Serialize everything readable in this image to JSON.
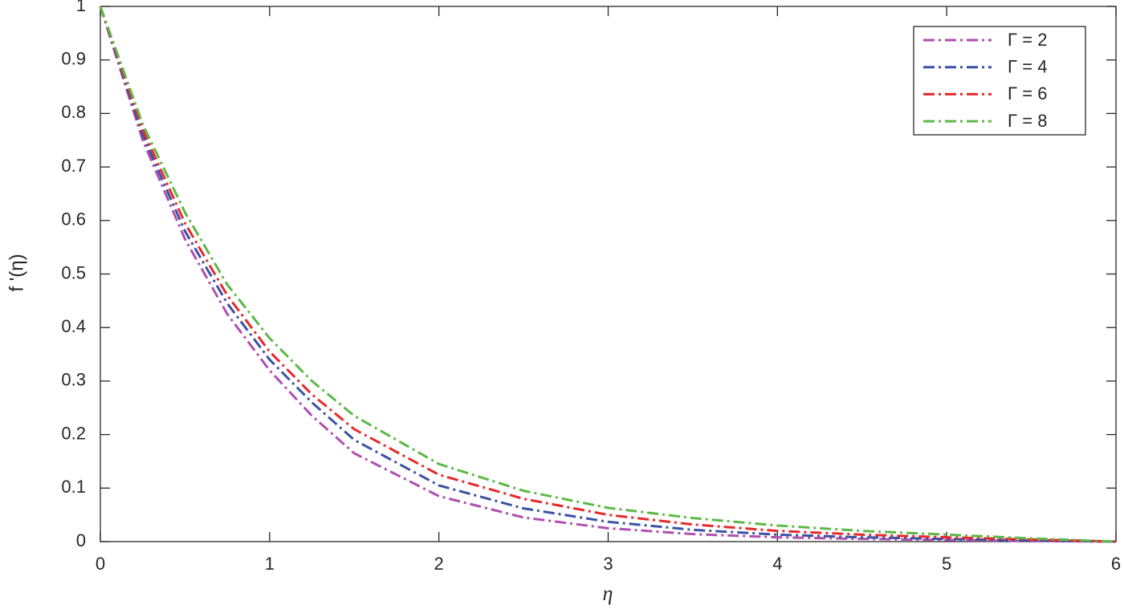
{
  "chart_data": {
    "type": "line",
    "xlabel": "η",
    "ylabel": "f '(η)",
    "x": [
      0,
      0.25,
      0.5,
      0.75,
      1,
      1.25,
      1.5,
      2,
      2.5,
      3,
      3.5,
      4,
      4.5,
      5,
      5.5,
      6
    ],
    "series": [
      {
        "name": "Γ = 2",
        "color": "#b04fae",
        "values": [
          1,
          0.75,
          0.565,
          0.425,
          0.32,
          0.235,
          0.165,
          0.085,
          0.045,
          0.025,
          0.014,
          0.008,
          0.005,
          0.003,
          0.001,
          0
        ]
      },
      {
        "name": "Γ = 4",
        "color": "#3a52a3",
        "values": [
          1,
          0.76,
          0.58,
          0.445,
          0.34,
          0.26,
          0.19,
          0.105,
          0.062,
          0.037,
          0.022,
          0.013,
          0.008,
          0.005,
          0.002,
          0
        ]
      },
      {
        "name": "Γ = 6",
        "color": "#e52a2a",
        "values": [
          1,
          0.77,
          0.595,
          0.46,
          0.355,
          0.275,
          0.21,
          0.125,
          0.08,
          0.05,
          0.032,
          0.02,
          0.013,
          0.008,
          0.004,
          0
        ]
      },
      {
        "name": "Γ = 8",
        "color": "#5db847",
        "values": [
          1,
          0.78,
          0.615,
          0.48,
          0.38,
          0.3,
          0.235,
          0.145,
          0.095,
          0.063,
          0.044,
          0.03,
          0.02,
          0.013,
          0.006,
          0
        ]
      }
    ],
    "xlim": [
      0,
      6
    ],
    "xticks": [
      0,
      1,
      2,
      3,
      4,
      5,
      6
    ],
    "ylim": [
      0,
      1
    ],
    "yticks": [
      0,
      0.1,
      0.2,
      0.3,
      0.4,
      0.5,
      0.6,
      0.7,
      0.8,
      0.9,
      1
    ],
    "legend": "top-right",
    "line_style": "dash-dot"
  }
}
